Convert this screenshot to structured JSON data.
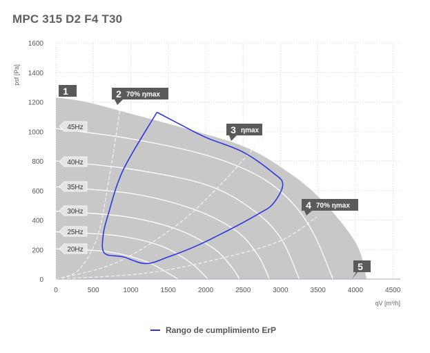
{
  "title": "MPC 315 D2 F4 T30",
  "chart_data": {
    "type": "line",
    "xlabel": "qV [m³/h]",
    "ylabel": "psf [Pa]",
    "xlim": [
      0,
      4600
    ],
    "ylim": [
      0,
      1600
    ],
    "xticks": [
      0,
      500,
      1000,
      1500,
      2000,
      2500,
      3000,
      3500,
      4000,
      4500
    ],
    "yticks": [
      0,
      200,
      400,
      600,
      800,
      1000,
      1200,
      1400,
      1600
    ],
    "grid": true,
    "envelope": [
      [
        0,
        1230
      ],
      [
        400,
        1200
      ],
      [
        1000,
        1120
      ],
      [
        1800,
        1010
      ],
      [
        2500,
        900
      ],
      [
        3000,
        760
      ],
      [
        3500,
        560
      ],
      [
        4000,
        250
      ],
      [
        4150,
        0
      ],
      [
        0,
        0
      ]
    ],
    "speed_curves": [
      {
        "label": "45Hz",
        "points": [
          [
            0,
            1020
          ],
          [
            1000,
            950
          ],
          [
            2000,
            840
          ],
          [
            2700,
            700
          ],
          [
            3150,
            520
          ],
          [
            3450,
            300
          ],
          [
            3700,
            0
          ]
        ]
      },
      {
        "label": "40Hz",
        "points": [
          [
            0,
            800
          ],
          [
            1000,
            745
          ],
          [
            2000,
            640
          ],
          [
            2600,
            480
          ],
          [
            3000,
            280
          ],
          [
            3250,
            0
          ]
        ]
      },
      {
        "label": "35Hz",
        "points": [
          [
            0,
            625
          ],
          [
            1000,
            580
          ],
          [
            1800,
            480
          ],
          [
            2400,
            330
          ],
          [
            2700,
            160
          ],
          [
            2850,
            0
          ]
        ]
      },
      {
        "label": "30Hz",
        "points": [
          [
            0,
            460
          ],
          [
            900,
            425
          ],
          [
            1600,
            340
          ],
          [
            2100,
            210
          ],
          [
            2350,
            80
          ],
          [
            2450,
            0
          ]
        ]
      },
      {
        "label": "25Hz",
        "points": [
          [
            0,
            320
          ],
          [
            800,
            295
          ],
          [
            1400,
            225
          ],
          [
            1800,
            110
          ],
          [
            2030,
            0
          ]
        ]
      },
      {
        "label": "20Hz",
        "points": [
          [
            0,
            205
          ],
          [
            700,
            185
          ],
          [
            1200,
            120
          ],
          [
            1500,
            40
          ],
          [
            1630,
            0
          ]
        ]
      }
    ],
    "system_curves": [
      {
        "label": "2 70% ηmax",
        "points": [
          [
            0,
            0
          ],
          [
            300,
            60
          ],
          [
            550,
            280
          ],
          [
            700,
            650
          ],
          [
            850,
            1130
          ],
          [
            880,
            1230
          ]
        ]
      },
      {
        "label": "3 ηmax",
        "points": [
          [
            0,
            0
          ],
          [
            800,
            110
          ],
          [
            1600,
            360
          ],
          [
            2200,
            640
          ],
          [
            2800,
            980
          ]
        ]
      },
      {
        "label": "4 70% ηmax",
        "points": [
          [
            0,
            0
          ],
          [
            1200,
            40
          ],
          [
            2200,
            140
          ],
          [
            3000,
            260
          ],
          [
            3480,
            420
          ]
        ]
      }
    ],
    "erp_range": {
      "name": "Rango de cumplimiento ErP",
      "color": "#2b35e0",
      "points": [
        [
          1350,
          1130
        ],
        [
          1650,
          1050
        ],
        [
          2000,
          960
        ],
        [
          2500,
          860
        ],
        [
          2900,
          720
        ],
        [
          3030,
          640
        ],
        [
          2900,
          510
        ],
        [
          2700,
          440
        ],
        [
          2300,
          330
        ],
        [
          1900,
          230
        ],
        [
          1500,
          150
        ],
        [
          1200,
          105
        ],
        [
          900,
          150
        ],
        [
          650,
          175
        ],
        [
          630,
          290
        ],
        [
          700,
          440
        ],
        [
          900,
          740
        ],
        [
          1350,
          1130
        ]
      ]
    },
    "callouts": [
      {
        "num": "1",
        "text": ""
      },
      {
        "num": "2",
        "text": "70% ηmax"
      },
      {
        "num": "3",
        "text": "ηmax"
      },
      {
        "num": "4",
        "text": "70% ηmax"
      },
      {
        "num": "5",
        "text": ""
      }
    ]
  },
  "legend": {
    "label": "Rango de cumplimiento ErP"
  }
}
